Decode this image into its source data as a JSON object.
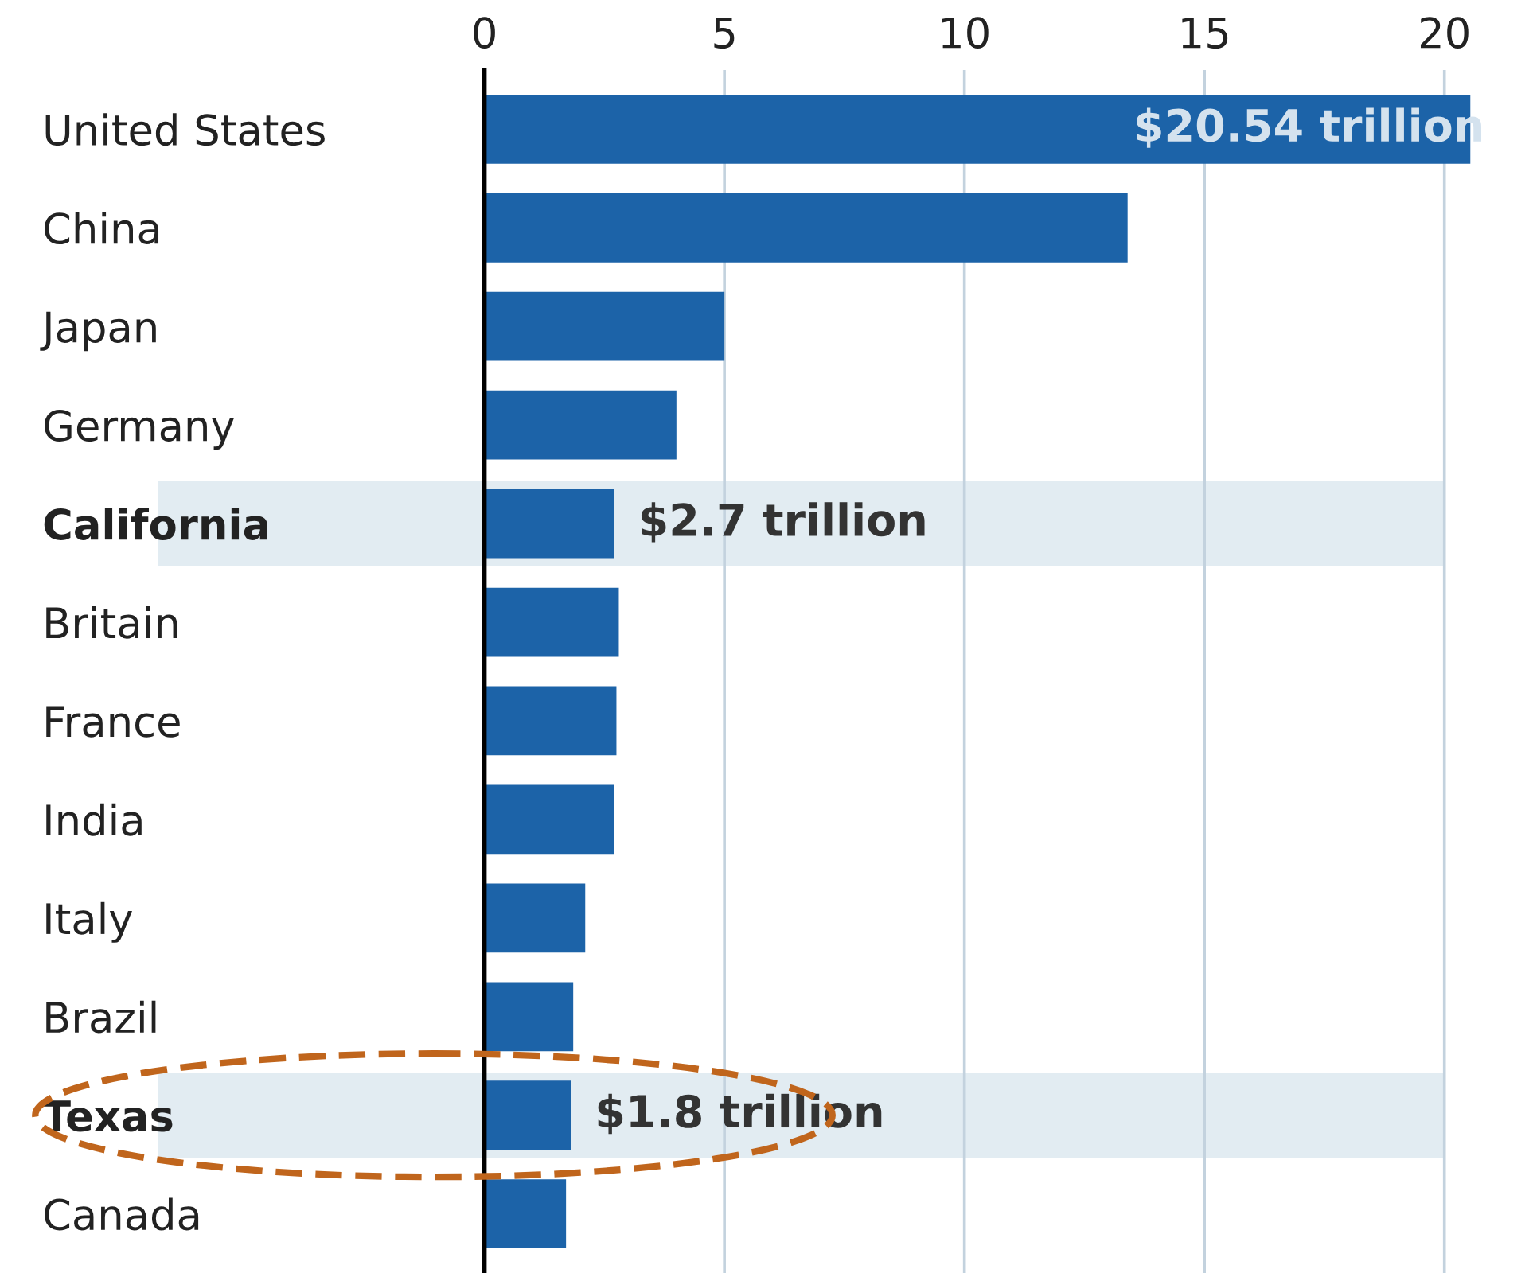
{
  "chart_data": {
    "type": "bar",
    "orientation": "horizontal",
    "categories": [
      "United States",
      "China",
      "Japan",
      "Germany",
      "California",
      "Britain",
      "France",
      "India",
      "Italy",
      "Brazil",
      "Texas",
      "Canada"
    ],
    "values": [
      20.54,
      13.4,
      5.0,
      4.0,
      2.7,
      2.8,
      2.75,
      2.7,
      2.1,
      1.85,
      1.8,
      1.7
    ],
    "value_labels": [
      "$20.54 trillion",
      null,
      null,
      null,
      "$2.7 trillion",
      null,
      null,
      null,
      null,
      null,
      "$1.8 trillion",
      null
    ],
    "color": "#1c63a8",
    "xlim": [
      0,
      20.6
    ],
    "xticks": [
      0,
      5,
      10,
      15,
      20
    ],
    "grid": "x",
    "bands": [
      {
        "axis": "y",
        "from": "California",
        "to": "California",
        "color": "#e2ecf2"
      },
      {
        "axis": "y",
        "from": "Texas",
        "to": "Texas",
        "color": "#e2ecf2"
      }
    ]
  }
}
